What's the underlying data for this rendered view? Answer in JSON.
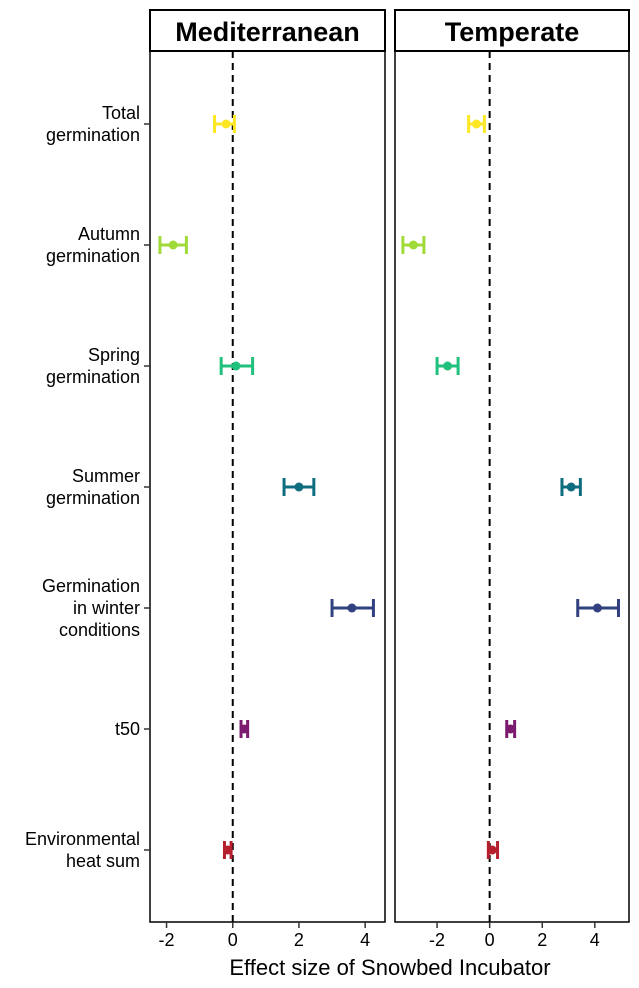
{
  "chart_data": {
    "type": "forest",
    "xlabel": "Effect size of Snowbed Incubator",
    "ylabel": "",
    "title": "",
    "rows": [
      {
        "id": "total",
        "label_lines": [
          "Total",
          "germination"
        ],
        "color": "#FDE725"
      },
      {
        "id": "autumn",
        "label_lines": [
          "Autumn",
          "germination"
        ],
        "color": "#A0DA39"
      },
      {
        "id": "spring",
        "label_lines": [
          "Spring",
          "germination"
        ],
        "color": "#1FC17C"
      },
      {
        "id": "summer",
        "label_lines": [
          "Summer",
          "germination"
        ],
        "color": "#0F6D80"
      },
      {
        "id": "winter",
        "label_lines": [
          "Germination",
          "in winter",
          "conditions"
        ],
        "color": "#31407F"
      },
      {
        "id": "t50",
        "label_lines": [
          "t50"
        ],
        "color": "#7B1A6E"
      },
      {
        "id": "heat",
        "label_lines": [
          "Environmental",
          "heat sum"
        ],
        "color": "#B61F2E"
      }
    ],
    "panels": [
      {
        "title": "Mediterranean",
        "xlim": [
          -2.5,
          4.6
        ],
        "ticks": [
          -2,
          0,
          2,
          4
        ],
        "estimates": [
          {
            "row": "total",
            "est": -0.2,
            "lo": -0.55,
            "hi": 0.05
          },
          {
            "row": "autumn",
            "est": -1.8,
            "lo": -2.2,
            "hi": -1.4
          },
          {
            "row": "spring",
            "est": 0.1,
            "lo": -0.35,
            "hi": 0.6
          },
          {
            "row": "summer",
            "est": 2.0,
            "lo": 1.55,
            "hi": 2.45
          },
          {
            "row": "winter",
            "est": 3.6,
            "lo": 3.0,
            "hi": 4.25
          },
          {
            "row": "t50",
            "est": 0.35,
            "lo": 0.25,
            "hi": 0.45
          },
          {
            "row": "heat",
            "est": -0.15,
            "lo": -0.25,
            "hi": -0.05
          }
        ]
      },
      {
        "title": "Temperate",
        "xlim": [
          -3.6,
          5.3
        ],
        "ticks": [
          -2,
          0,
          2,
          4
        ],
        "estimates": [
          {
            "row": "total",
            "est": -0.5,
            "lo": -0.8,
            "hi": -0.2
          },
          {
            "row": "autumn",
            "est": -2.9,
            "lo": -3.3,
            "hi": -2.5
          },
          {
            "row": "spring",
            "est": -1.6,
            "lo": -2.0,
            "hi": -1.2
          },
          {
            "row": "summer",
            "est": 3.1,
            "lo": 2.75,
            "hi": 3.45
          },
          {
            "row": "winter",
            "est": 4.1,
            "lo": 3.35,
            "hi": 4.9
          },
          {
            "row": "t50",
            "est": 0.8,
            "lo": 0.65,
            "hi": 0.95
          },
          {
            "row": "heat",
            "est": 0.1,
            "lo": -0.05,
            "hi": 0.3
          }
        ]
      }
    ],
    "reference_line": 0
  }
}
